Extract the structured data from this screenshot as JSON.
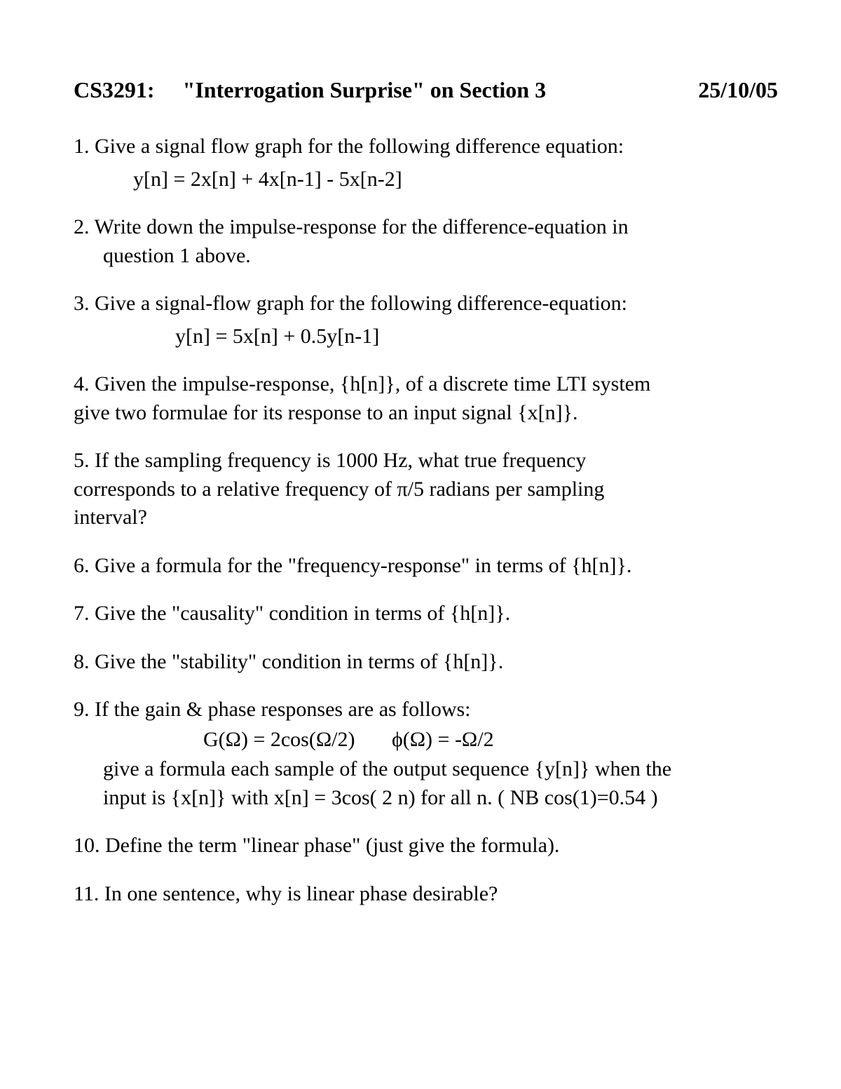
{
  "header": {
    "course": "CS3291:",
    "title": "\"Interrogation Surprise\" on Section 3",
    "date": "25/10/05"
  },
  "q1": {
    "text": "1. Give a signal flow graph for the following difference equation:",
    "eq": "y[n] = 2x[n] + 4x[n-1] - 5x[n-2]"
  },
  "q2": {
    "line1": "2.  Write down the impulse-response for the difference-equation in",
    "line2": "question 1 above."
  },
  "q3": {
    "text": "3.  Give a signal-flow graph for the following difference-equation:",
    "eq": "y[n] = 5x[n] + 0.5y[n-1]"
  },
  "q4": {
    "line1": "4. Given the impulse-response, {h[n]}, of a discrete time LTI system",
    "line2": "give two formulae for its response to an input signal {x[n]}."
  },
  "q5": {
    "line1": "5. If the sampling frequency is 1000 Hz, what true frequency",
    "line2": "corresponds to a relative frequency of π/5 radians per sampling",
    "line3": "interval?"
  },
  "q6": {
    "text": "6. Give a formula for the \"frequency-response\" in terms of {h[n]}."
  },
  "q7": {
    "text": "7. Give the \"causality\" condition in terms of {h[n]}."
  },
  "q8": {
    "text": "8. Give the \"stability\" condition in terms of {h[n]}."
  },
  "q9": {
    "line1": "9. If the gain & phase responses are as follows:",
    "formula": "G(Ω) = 2cos(Ω/2)       ϕ(Ω) = -Ω/2",
    "line2": "give a formula each sample of the output sequence {y[n]} when the",
    "line3": "input is {x[n]} with  x[n] = 3cos( 2 n)  for all n. ( NB cos(1)=0.54 )"
  },
  "q10": {
    "text": "10. Define the term \"linear phase\" (just give the formula)."
  },
  "q11": {
    "text": "11.  In one sentence, why is linear phase desirable?"
  }
}
